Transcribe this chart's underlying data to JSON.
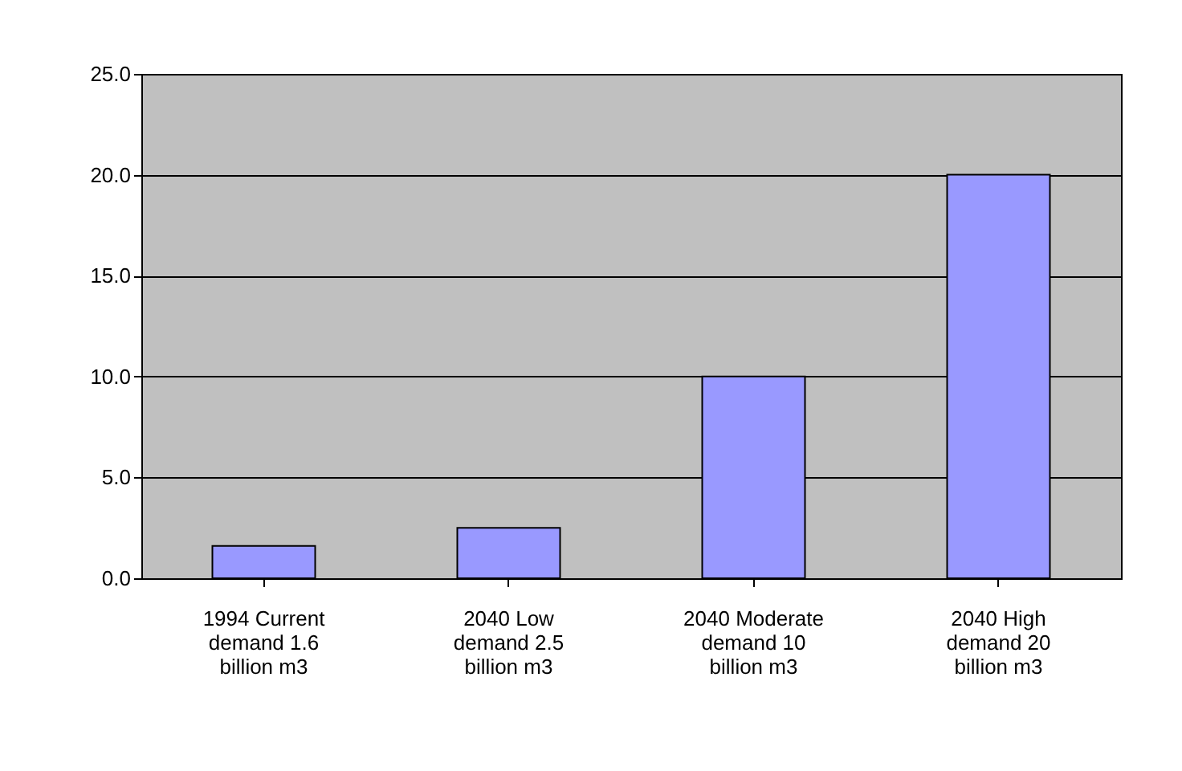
{
  "chart_data": {
    "type": "bar",
    "categories": [
      "1994 Current demand 1.6 billion m3",
      "2040 Low demand 2.5 billion m3",
      "2040 Moderate demand 10 billion m3",
      "2040 High demand 20 billion m3"
    ],
    "values": [
      1.6,
      2.5,
      10,
      20
    ],
    "color": "#9999ff",
    "ylim": [
      0,
      25
    ],
    "yticks": [
      {
        "value": 0,
        "label": "0.0"
      },
      {
        "value": 5,
        "label": "5.0"
      },
      {
        "value": 10,
        "label": "10.0"
      },
      {
        "value": 15,
        "label": "15.0"
      },
      {
        "value": 20,
        "label": "20.0"
      },
      {
        "value": 25,
        "label": "25.0"
      }
    ],
    "grid": "y"
  }
}
